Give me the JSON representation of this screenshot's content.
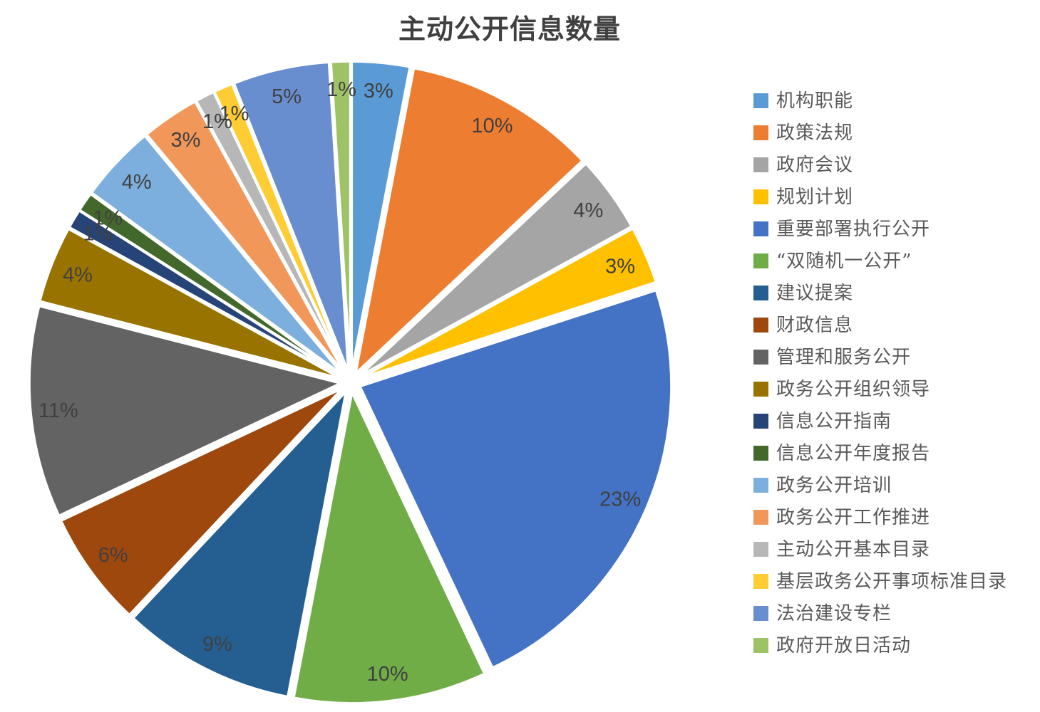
{
  "title": "主动公开信息数量",
  "colors": {
    "title_text": "#404040",
    "data_label_text": "#404040",
    "legend_text": "#595959",
    "background": "#FFFFFF",
    "slice_border": "#FFFFFF"
  },
  "chart_data": {
    "type": "pie",
    "title": "主动公开信息数量",
    "legend_position": "right",
    "start_angle_deg": 0,
    "direction": "clockwise",
    "label_type": "percent",
    "exploded": true,
    "slices": [
      {
        "name": "机构职能",
        "percent": 3,
        "label": "3%",
        "color": "#5B9BD5"
      },
      {
        "name": "政策法规",
        "percent": 10,
        "label": "10%",
        "color": "#ED7D31"
      },
      {
        "name": "政府会议",
        "percent": 4,
        "label": "4%",
        "color": "#A5A5A5"
      },
      {
        "name": "规划计划",
        "percent": 3,
        "label": "3%",
        "color": "#FFC000"
      },
      {
        "name": "重要部署执行公开",
        "percent": 23,
        "label": "23%",
        "color": "#4472C4"
      },
      {
        "name": "“双随机一公开”",
        "percent": 10,
        "label": "10%",
        "color": "#70AD47"
      },
      {
        "name": "建议提案",
        "percent": 9,
        "label": "9%",
        "color": "#255E91"
      },
      {
        "name": "财政信息",
        "percent": 6,
        "label": "6%",
        "color": "#9E480E"
      },
      {
        "name": "管理和服务公开",
        "percent": 11,
        "label": "11%",
        "color": "#636363"
      },
      {
        "name": "政务公开组织领导",
        "percent": 4,
        "label": "4%",
        "color": "#997300"
      },
      {
        "name": "信息公开指南",
        "percent": 1,
        "label": "1%",
        "color": "#264478"
      },
      {
        "name": "信息公开年度报告",
        "percent": 1,
        "label": "1%",
        "color": "#43682B"
      },
      {
        "name": "政务公开培训",
        "percent": 4,
        "label": "4%",
        "color": "#7CAFDD"
      },
      {
        "name": "政务公开工作推进",
        "percent": 3,
        "label": "3%",
        "color": "#F1975A"
      },
      {
        "name": "主动公开基本目录",
        "percent": 1,
        "label": "1%",
        "color": "#B7B7B7"
      },
      {
        "name": "基层政务公开事项标准目录",
        "percent": 1,
        "label": "1%",
        "color": "#FFCD33"
      },
      {
        "name": "法治建设专栏",
        "percent": 5,
        "label": "5%",
        "color": "#698ED0"
      },
      {
        "name": "政府开放日活动",
        "percent": 1,
        "label": "1%",
        "color": "#9DC366"
      }
    ]
  }
}
